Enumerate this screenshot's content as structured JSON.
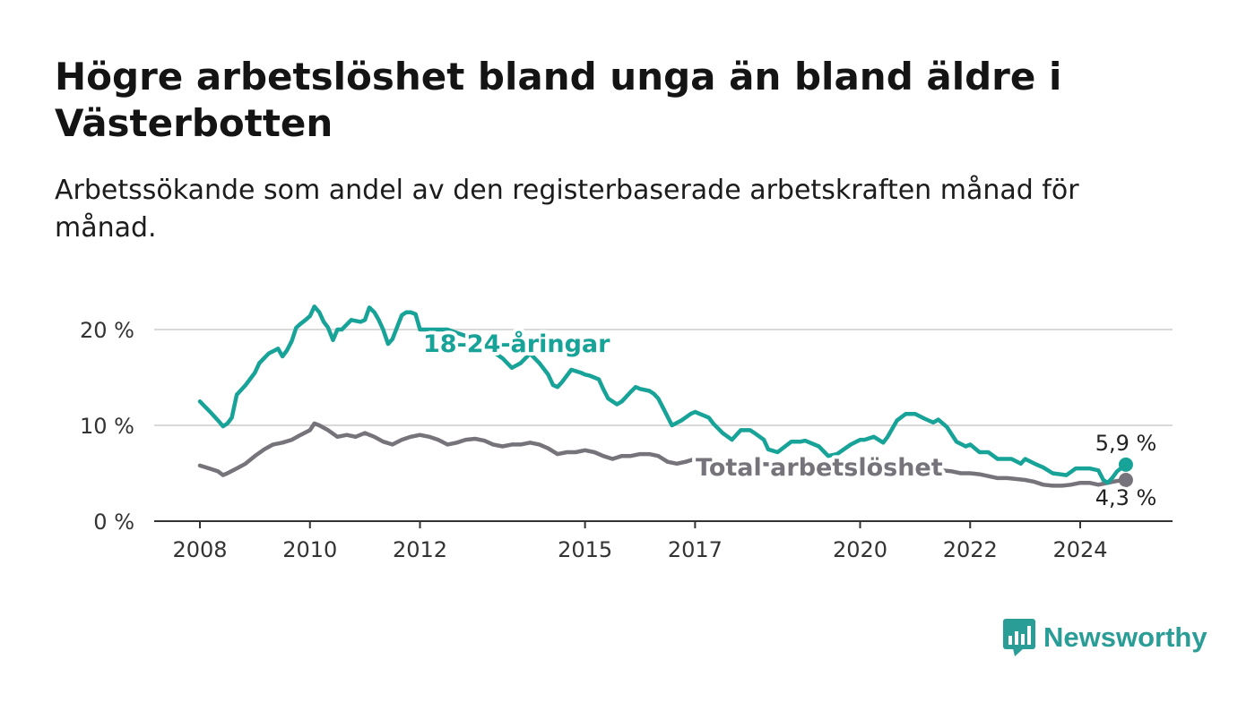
{
  "header": {
    "title": "Högre arbetslöshet bland unga än bland äldre i Västerbotten",
    "subtitle": "Arbetssökande som andel av den registerbaserade arbetskraften månad för månad."
  },
  "branding": {
    "logo_text": "Newsworthy",
    "logo_icon": "bar-chart-speech-bubble-icon",
    "color": "#2a9d96"
  },
  "chart_data": {
    "type": "line",
    "title": "Högre arbetslöshet bland unga än bland äldre i Västerbotten",
    "subtitle": "Arbetssökande som andel av den registerbaserade arbetskraften månad för månad.",
    "xlabel": "",
    "ylabel": "",
    "xlim": [
      2008.0,
      2025.83
    ],
    "ylim": [
      0,
      20
    ],
    "x_ticks": [
      2008,
      2010,
      2012,
      2015,
      2017,
      2020,
      2022,
      2024
    ],
    "y_ticks": [
      0,
      10,
      20
    ],
    "y_tick_labels": [
      "0 %",
      "10 %",
      "20 %"
    ],
    "grid": "horizontal",
    "legend": "inline labels on lines",
    "series": [
      {
        "name": "18-24-åringar",
        "color": "#17a398",
        "label_text": "18-24-åringar",
        "end_label": "5,9 %",
        "x": [
          2008.0,
          2008.17,
          2008.33,
          2008.42,
          2008.5,
          2008.58,
          2008.67,
          2008.83,
          2009.0,
          2009.08,
          2009.25,
          2009.42,
          2009.5,
          2009.58,
          2009.67,
          2009.75,
          2009.83,
          2009.92,
          2010.0,
          2010.08,
          2010.17,
          2010.25,
          2010.33,
          2010.42,
          2010.5,
          2010.58,
          2010.75,
          2010.92,
          2011.0,
          2011.08,
          2011.17,
          2011.25,
          2011.33,
          2011.42,
          2011.5,
          2011.67,
          2011.75,
          2011.83,
          2011.92,
          2012.0,
          2012.25,
          2012.5,
          2012.75,
          2013.0,
          2013.25,
          2013.5,
          2013.67,
          2013.83,
          2014.0,
          2014.17,
          2014.33,
          2014.42,
          2014.5,
          2014.58,
          2014.75,
          2014.92,
          2015.0,
          2015.08,
          2015.25,
          2015.33,
          2015.42,
          2015.58,
          2015.67,
          2015.83,
          2015.92,
          2016.0,
          2016.17,
          2016.25,
          2016.33,
          2016.42,
          2016.58,
          2016.75,
          2016.92,
          2017.0,
          2017.17,
          2017.25,
          2017.33,
          2017.5,
          2017.67,
          2017.83,
          2018.0,
          2018.08,
          2018.25,
          2018.33,
          2018.5,
          2018.75,
          2018.92,
          2019.0,
          2019.25,
          2019.42,
          2019.58,
          2019.83,
          2020.0,
          2020.08,
          2020.25,
          2020.42,
          2020.5,
          2020.67,
          2020.83,
          2021.0,
          2021.17,
          2021.33,
          2021.42,
          2021.58,
          2021.75,
          2021.92,
          2022.0,
          2022.17,
          2022.33,
          2022.5,
          2022.75,
          2022.92,
          2023.0,
          2023.17,
          2023.33,
          2023.5,
          2023.75,
          2023.92,
          2024.0,
          2024.17,
          2024.33,
          2024.42,
          2024.5,
          2024.58,
          2024.67,
          2024.83
        ],
        "y": [
          12.5,
          11.5,
          10.5,
          9.9,
          10.2,
          10.8,
          13.2,
          14.2,
          15.5,
          16.5,
          17.5,
          18.0,
          17.2,
          17.8,
          18.8,
          20.2,
          20.6,
          21.0,
          21.4,
          22.4,
          21.8,
          20.8,
          20.2,
          18.9,
          20.0,
          20.0,
          21.0,
          20.8,
          21.0,
          22.3,
          21.8,
          21.0,
          20.0,
          18.5,
          19.0,
          21.5,
          21.8,
          21.8,
          21.6,
          20.0,
          20.0,
          20.0,
          19.5,
          19.0,
          18.0,
          17.0,
          16.0,
          16.5,
          17.5,
          16.5,
          15.3,
          14.2,
          14.0,
          14.5,
          15.8,
          15.5,
          15.3,
          15.2,
          14.8,
          13.8,
          12.8,
          12.2,
          12.5,
          13.5,
          14.0,
          13.8,
          13.6,
          13.3,
          12.8,
          11.8,
          10.0,
          10.5,
          11.2,
          11.4,
          11.0,
          10.8,
          10.2,
          9.2,
          8.5,
          9.5,
          9.5,
          9.2,
          8.5,
          7.5,
          7.2,
          8.3,
          8.3,
          8.4,
          7.8,
          6.8,
          7.0,
          8.0,
          8.5,
          8.5,
          8.8,
          8.2,
          8.8,
          10.5,
          11.2,
          11.2,
          10.7,
          10.3,
          10.6,
          9.8,
          8.3,
          7.8,
          8.0,
          7.2,
          7.2,
          6.5,
          6.5,
          6.0,
          6.5,
          6.0,
          5.6,
          5.0,
          4.8,
          5.5,
          5.5,
          5.5,
          5.3,
          4.3,
          4.0,
          4.5,
          5.2,
          5.9
        ]
      },
      {
        "name": "Total arbetslöshet",
        "color": "#76737a",
        "label_text": "Total arbetslöshet",
        "end_label": "4,3 %",
        "x": [
          2008.0,
          2008.17,
          2008.33,
          2008.42,
          2008.5,
          2008.67,
          2008.83,
          2009.0,
          2009.17,
          2009.33,
          2009.5,
          2009.67,
          2009.83,
          2010.0,
          2010.08,
          2010.17,
          2010.33,
          2010.5,
          2010.67,
          2010.83,
          2011.0,
          2011.17,
          2011.33,
          2011.5,
          2011.67,
          2011.83,
          2012.0,
          2012.17,
          2012.33,
          2012.5,
          2012.67,
          2012.83,
          2013.0,
          2013.17,
          2013.33,
          2013.5,
          2013.67,
          2013.83,
          2014.0,
          2014.17,
          2014.33,
          2014.5,
          2014.67,
          2014.83,
          2015.0,
          2015.17,
          2015.33,
          2015.5,
          2015.67,
          2015.83,
          2016.0,
          2016.17,
          2016.33,
          2016.5,
          2016.67,
          2016.83,
          2017.0,
          2017.25,
          2017.5,
          2017.75,
          2018.0,
          2018.5,
          2019.0,
          2019.5,
          2020.0,
          2020.5,
          2021.0,
          2021.33,
          2021.5,
          2021.67,
          2021.83,
          2022.0,
          2022.17,
          2022.33,
          2022.5,
          2022.67,
          2022.83,
          2023.0,
          2023.17,
          2023.33,
          2023.5,
          2023.67,
          2023.83,
          2024.0,
          2024.17,
          2024.33,
          2024.5,
          2024.67,
          2024.83
        ],
        "y": [
          5.8,
          5.5,
          5.2,
          4.8,
          5.0,
          5.5,
          6.0,
          6.8,
          7.5,
          8.0,
          8.2,
          8.5,
          9.0,
          9.5,
          10.2,
          10.0,
          9.5,
          8.8,
          9.0,
          8.8,
          9.2,
          8.8,
          8.3,
          8.0,
          8.5,
          8.8,
          9.0,
          8.8,
          8.5,
          8.0,
          8.2,
          8.5,
          8.6,
          8.4,
          8.0,
          7.8,
          8.0,
          8.0,
          8.2,
          8.0,
          7.6,
          7.0,
          7.2,
          7.2,
          7.4,
          7.2,
          6.8,
          6.5,
          6.8,
          6.8,
          7.0,
          7.0,
          6.8,
          6.2,
          6.0,
          6.2,
          6.5,
          6.4,
          6.2,
          6.0,
          6.0,
          5.9,
          5.8,
          5.7,
          5.8,
          5.8,
          5.7,
          5.5,
          5.3,
          5.2,
          5.0,
          5.0,
          4.9,
          4.7,
          4.5,
          4.5,
          4.4,
          4.3,
          4.1,
          3.8,
          3.7,
          3.7,
          3.8,
          4.0,
          4.0,
          3.8,
          4.0,
          4.2,
          4.3
        ]
      }
    ]
  }
}
